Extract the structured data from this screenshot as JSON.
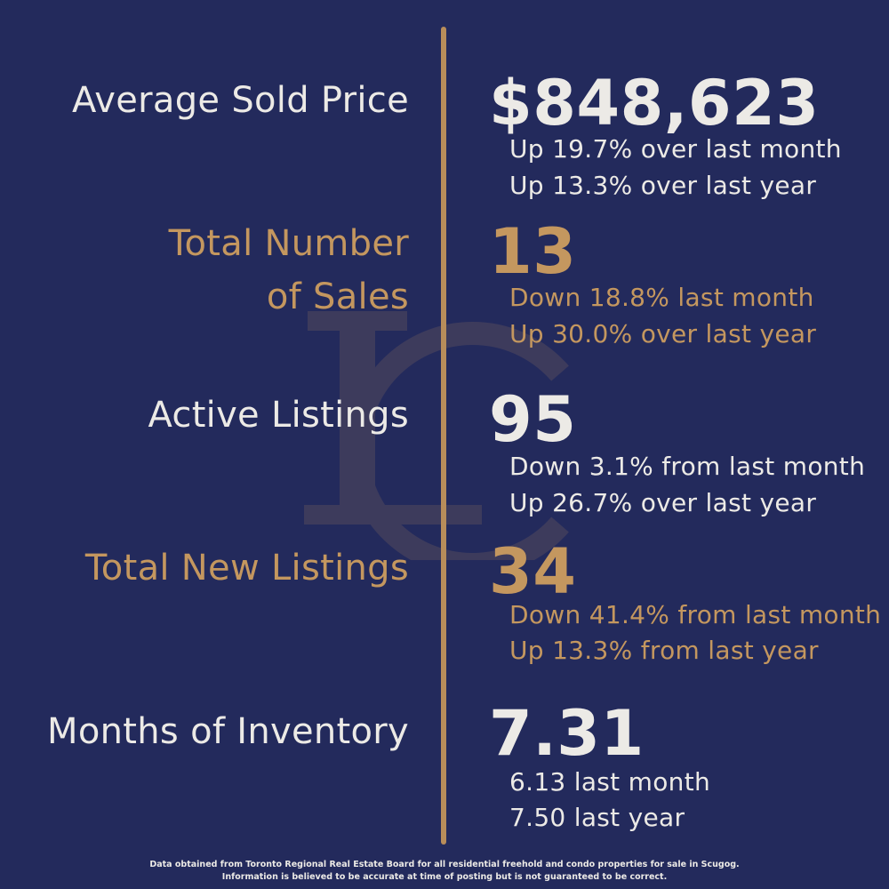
{
  "metrics": {
    "avg_price": {
      "label": "Average Sold Price",
      "value": "$848,623",
      "line1": "Up 19.7% over last month",
      "line2": "Up 13.3% over last year"
    },
    "total_sales": {
      "label_line1": "Total Number",
      "label_line2": "of Sales",
      "value": "13",
      "line1": "Down 18.8% last month",
      "line2": "Up 30.0% over last year"
    },
    "active_listings": {
      "label": "Active Listings",
      "value": "95",
      "line1": "Down 3.1% from last month",
      "line2": "Up 26.7% over last year"
    },
    "new_listings": {
      "label": "Total New Listings",
      "value": "34",
      "line1": "Down 41.4% from last month",
      "line2": "Up 13.3% from last year"
    },
    "inventory": {
      "label": "Months of Inventory",
      "value": "7.31",
      "line1": "6.13 last month",
      "line2": "7.50 last year"
    }
  },
  "footer": {
    "line1": "Data obtained from Toronto Regional Real Estate Board for all residential freehold and condo properties for sale in Scugog.",
    "line2": "Information is believed to be accurate at time of posting but is not guaranteed to be correct."
  },
  "colors": {
    "background": "#232a5c",
    "gold": "#c4975f",
    "light": "#eceae6"
  },
  "watermark": {
    "icon": "lc-monogram-icon"
  }
}
